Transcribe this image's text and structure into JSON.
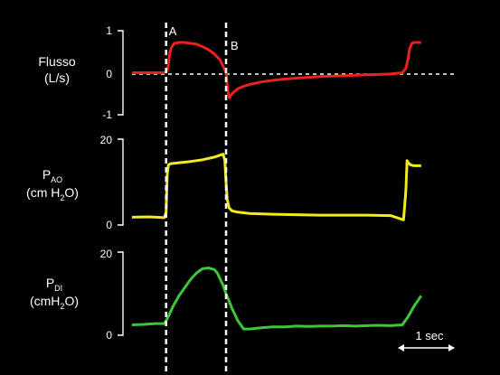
{
  "chart_data": [
    {
      "type": "line",
      "label_line1": "Flusso",
      "label_line2": "(L/s)",
      "ylim": [
        -1,
        1
      ],
      "yticks": [
        "1",
        "0",
        "-1"
      ],
      "color": "#e8231c",
      "zero_line": true,
      "x": [
        0.0,
        0.55,
        0.6,
        0.62,
        0.64,
        0.66,
        0.68,
        0.72,
        0.8,
        0.9,
        1.0,
        1.1,
        1.2,
        1.3,
        1.4,
        1.5,
        1.55,
        1.6,
        1.63,
        1.66,
        1.7,
        1.8,
        1.9,
        2.0,
        2.2,
        2.4,
        2.6,
        2.8,
        3.0,
        3.2,
        3.4,
        3.6,
        3.8,
        4.0,
        4.2,
        4.4,
        4.6,
        4.66,
        4.7,
        4.72,
        4.76,
        4.8,
        4.92
      ],
      "y": [
        0.0,
        0.0,
        0.05,
        0.2,
        0.45,
        0.55,
        0.62,
        0.7,
        0.72,
        0.72,
        0.7,
        0.68,
        0.62,
        0.55,
        0.45,
        0.3,
        0.15,
        0.0,
        -0.45,
        -0.6,
        -0.5,
        -0.38,
        -0.32,
        -0.28,
        -0.22,
        -0.18,
        -0.15,
        -0.13,
        -0.11,
        -0.09,
        -0.08,
        -0.07,
        -0.06,
        -0.05,
        -0.04,
        -0.03,
        0.0,
        0.1,
        0.35,
        0.55,
        0.7,
        0.72,
        0.72
      ]
    },
    {
      "type": "line",
      "label_main": "P",
      "label_sub": "AO",
      "label_line2_a": "(cm H",
      "label_line2_sub": "2",
      "label_line2_b": "O)",
      "ylim": [
        0,
        20
      ],
      "yticks": [
        "20",
        "0"
      ],
      "color": "#f2ec1a",
      "x": [
        0.0,
        0.3,
        0.55,
        0.58,
        0.6,
        0.62,
        0.66,
        0.8,
        1.0,
        1.2,
        1.4,
        1.55,
        1.58,
        1.6,
        1.62,
        1.65,
        1.7,
        1.8,
        2.0,
        2.4,
        2.8,
        3.2,
        3.6,
        4.0,
        4.4,
        4.62,
        4.66,
        4.68,
        4.7,
        4.74,
        4.8,
        4.92
      ],
      "y": [
        1.8,
        1.9,
        1.7,
        3.0,
        12.0,
        14.0,
        14.3,
        14.5,
        14.8,
        15.2,
        15.8,
        16.5,
        15.0,
        10.0,
        6.0,
        4.0,
        3.3,
        3.0,
        2.7,
        2.5,
        2.4,
        2.3,
        2.3,
        2.3,
        2.2,
        1.2,
        8.0,
        15.0,
        14.5,
        14.0,
        13.8,
        13.8
      ]
    },
    {
      "type": "line",
      "label_main": "P",
      "label_sub": "DI",
      "label_line2_a": "(cmH",
      "label_line2_sub": "2",
      "label_line2_b": "O)",
      "ylim": [
        0,
        20
      ],
      "yticks": [
        "20",
        "0"
      ],
      "color": "#3fc53a",
      "x": [
        0.0,
        0.2,
        0.4,
        0.55,
        0.6,
        0.7,
        0.8,
        0.9,
        1.0,
        1.1,
        1.2,
        1.3,
        1.4,
        1.45,
        1.5,
        1.55,
        1.6,
        1.7,
        1.8,
        1.9,
        2.0,
        2.2,
        2.4,
        2.6,
        2.8,
        3.0,
        3.2,
        3.4,
        3.6,
        3.8,
        4.0,
        4.2,
        4.4,
        4.6,
        4.7,
        4.8,
        4.92
      ],
      "y": [
        2.5,
        2.6,
        2.8,
        2.8,
        4.0,
        7.0,
        9.5,
        11.5,
        13.5,
        15.0,
        16.0,
        16.2,
        15.8,
        15.0,
        13.5,
        12.0,
        10.0,
        6.5,
        3.5,
        1.5,
        1.5,
        1.8,
        2.0,
        2.0,
        2.2,
        2.1,
        2.2,
        2.2,
        2.3,
        2.2,
        2.3,
        2.4,
        2.3,
        2.5,
        4.5,
        7.0,
        9.5
      ]
    }
  ],
  "markers": {
    "A": {
      "label": "A",
      "x": 0.58
    },
    "B": {
      "label": "B",
      "x": 1.6
    }
  },
  "scale_bar": {
    "label": "1 sec"
  }
}
